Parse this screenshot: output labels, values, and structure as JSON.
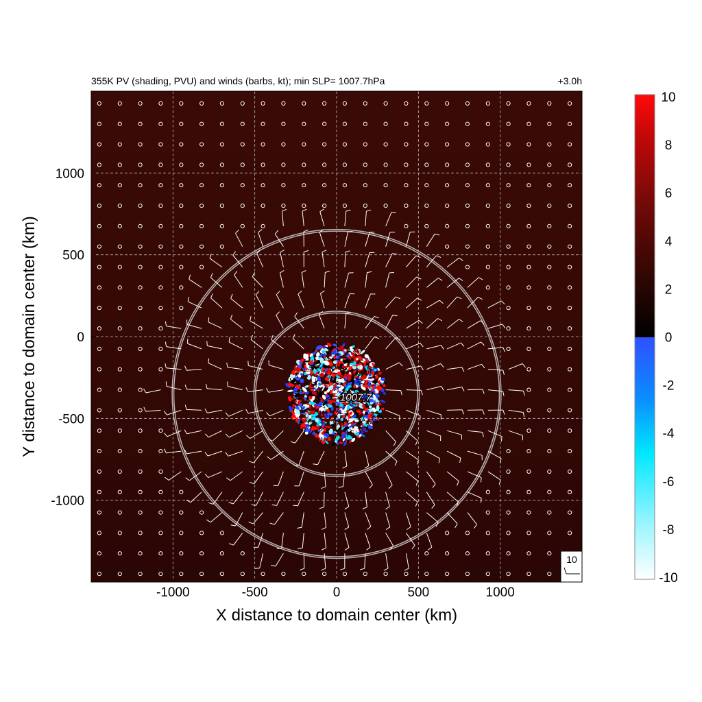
{
  "header": {
    "title": "355K PV (shading, PVU) and winds (barbs, kt); min SLP= 1007.7hPa",
    "time_label": "+3.0h"
  },
  "chart_data": {
    "type": "heatmap",
    "title": "355K PV (shading, PVU) and winds (barbs, kt); min SLP= 1007.7hPa",
    "forecast_time": "+3.0h",
    "xlabel": "X distance to domain center (km)",
    "ylabel": "Y distance to domain center (km)",
    "xlim": [
      -1500,
      1500
    ],
    "ylim": [
      -1500,
      1500
    ],
    "xticks": [
      -1000,
      -500,
      0,
      500,
      1000
    ],
    "yticks": [
      1000,
      500,
      0,
      -500,
      -1000
    ],
    "grid": true,
    "background_pv": 2.2,
    "colorbar": {
      "min": -10,
      "max": 10,
      "ticks": [
        10,
        8,
        6,
        4,
        2,
        0,
        -2,
        -4,
        -6,
        -8,
        -10
      ],
      "colors": {
        "minus10": "#ffffff",
        "minus7": "#7ff8ff",
        "minus5": "#00eaff",
        "minus3": "#0090ff",
        "minus0": "#3050ff",
        "zero": "#000000",
        "plus3": "#5a0a06",
        "plus6": "#a00808",
        "plus10": "#ff0a0a"
      }
    },
    "min_slp": {
      "label": "1007.7",
      "x": 0,
      "y": -350,
      "value_hPa": 1007.7
    },
    "range_rings": {
      "center": [
        0,
        -350
      ],
      "radii_km": [
        500,
        1000
      ]
    },
    "disturbed_core": {
      "center": [
        0,
        -350
      ],
      "radius_km": 300
    },
    "wind_barbs": {
      "spacing_km": 125,
      "reference_speed": "10",
      "calm_symbol": "circle"
    }
  }
}
